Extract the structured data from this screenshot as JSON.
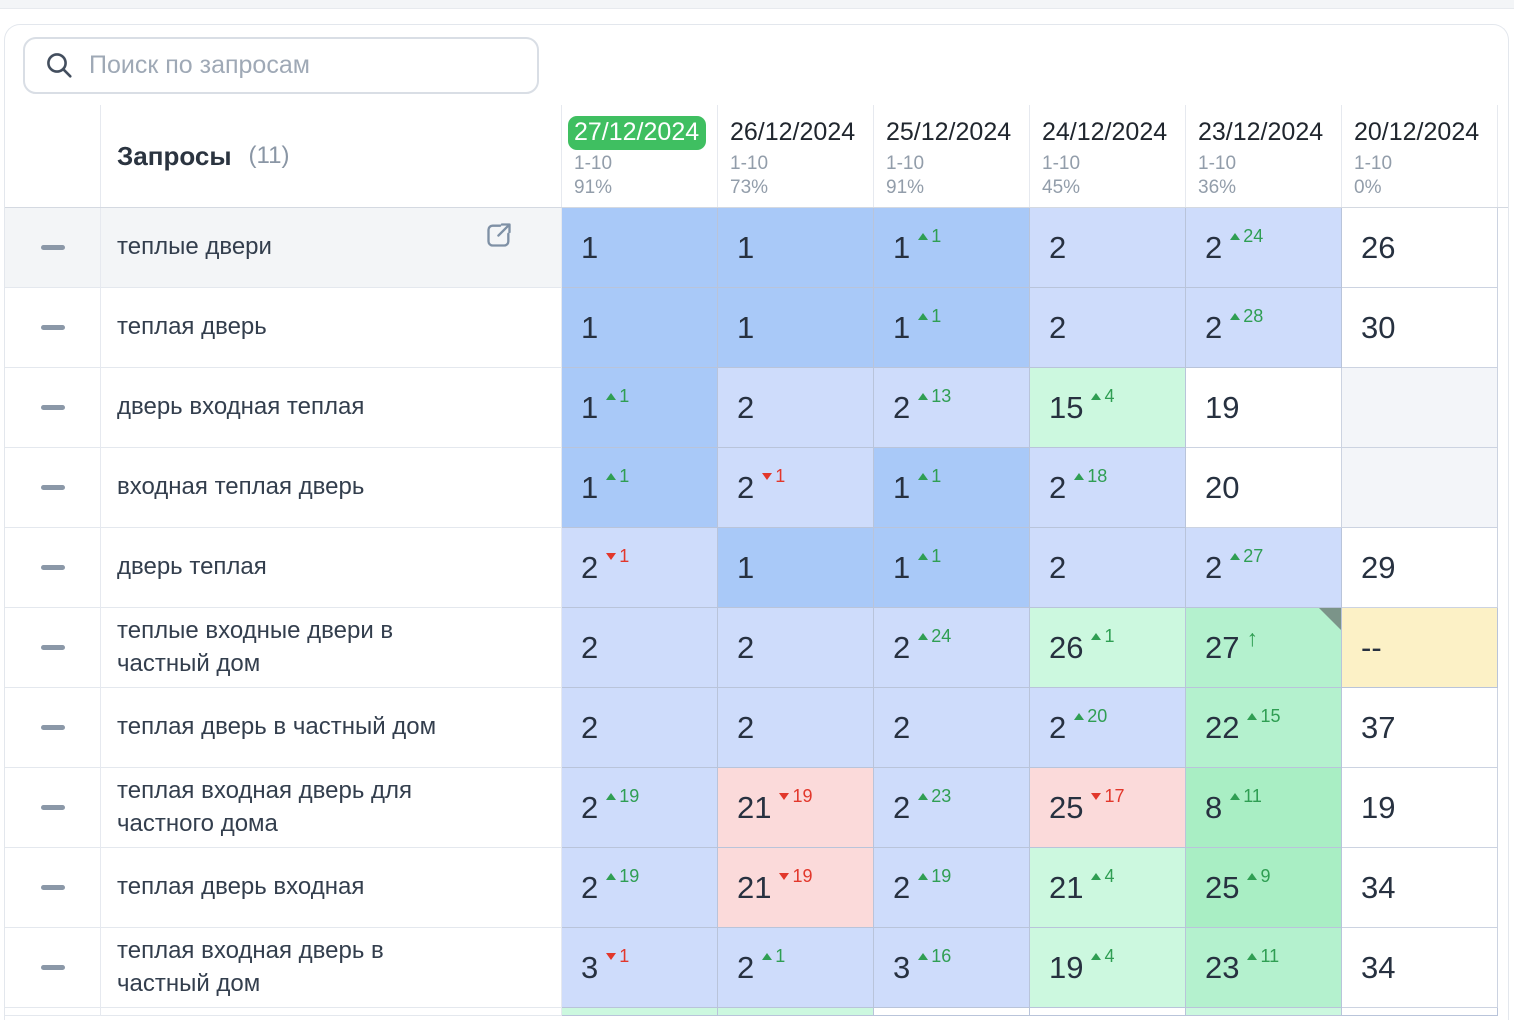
{
  "search": {
    "placeholder": "Поиск по запросам"
  },
  "icons": {
    "search": "magnifier",
    "row_select": "minus-dash",
    "row_action": "external-link",
    "change_up": "triangle-up",
    "change_down": "triangle-down",
    "new_entry": "arrow-up",
    "cell_note": "corner-notch"
  },
  "colors": {
    "b1": "#a9c9f8",
    "b2": "#cedcfb",
    "g1": "#ccf8df",
    "g2": "#b4f1ce",
    "g3": "#a9eec4",
    "pink": "#fbdada",
    "yellow": "#fcf1c6",
    "empty": "#f3f5f9",
    "white": "#ffffff",
    "selected_date_badge": "#3fbf61",
    "up": "#2f9e53",
    "down": "#e2372b"
  },
  "table": {
    "queries_label": "Запросы",
    "queries_count": "(11)",
    "columns": [
      {
        "date": "27/12/2024",
        "range": "1-10",
        "percent": "91%",
        "selected": true
      },
      {
        "date": "26/12/2024",
        "range": "1-10",
        "percent": "73%",
        "selected": false
      },
      {
        "date": "25/12/2024",
        "range": "1-10",
        "percent": "91%",
        "selected": false
      },
      {
        "date": "24/12/2024",
        "range": "1-10",
        "percent": "45%",
        "selected": false
      },
      {
        "date": "23/12/2024",
        "range": "1-10",
        "percent": "36%",
        "selected": false
      },
      {
        "date": "20/12/2024",
        "range": "1-10",
        "percent": "0%",
        "selected": false
      }
    ],
    "rows": [
      {
        "query": "теплые двери",
        "hovered": true,
        "cells": [
          {
            "v": "1",
            "bg": "b1"
          },
          {
            "v": "1",
            "bg": "b1"
          },
          {
            "v": "1",
            "dir": "up",
            "chg": "1",
            "bg": "b1"
          },
          {
            "v": "2",
            "bg": "b2"
          },
          {
            "v": "2",
            "dir": "up",
            "chg": "24",
            "bg": "b2"
          },
          {
            "v": "26",
            "bg": "white"
          }
        ]
      },
      {
        "query": "теплая дверь",
        "cells": [
          {
            "v": "1",
            "bg": "b1"
          },
          {
            "v": "1",
            "bg": "b1"
          },
          {
            "v": "1",
            "dir": "up",
            "chg": "1",
            "bg": "b1"
          },
          {
            "v": "2",
            "bg": "b2"
          },
          {
            "v": "2",
            "dir": "up",
            "chg": "28",
            "bg": "b2"
          },
          {
            "v": "30",
            "bg": "white"
          }
        ]
      },
      {
        "query": "дверь входная теплая",
        "cells": [
          {
            "v": "1",
            "dir": "up",
            "chg": "1",
            "bg": "b1"
          },
          {
            "v": "2",
            "bg": "b2"
          },
          {
            "v": "2",
            "dir": "up",
            "chg": "13",
            "bg": "b2"
          },
          {
            "v": "15",
            "dir": "up",
            "chg": "4",
            "bg": "g1"
          },
          {
            "v": "19",
            "bg": "white"
          },
          {
            "v": "",
            "bg": "empty"
          }
        ]
      },
      {
        "query": "входная теплая дверь",
        "cells": [
          {
            "v": "1",
            "dir": "up",
            "chg": "1",
            "bg": "b1"
          },
          {
            "v": "2",
            "dir": "down",
            "chg": "1",
            "bg": "b2"
          },
          {
            "v": "1",
            "dir": "up",
            "chg": "1",
            "bg": "b1"
          },
          {
            "v": "2",
            "dir": "up",
            "chg": "18",
            "bg": "b2"
          },
          {
            "v": "20",
            "bg": "white"
          },
          {
            "v": "",
            "bg": "empty"
          }
        ]
      },
      {
        "query": "дверь теплая",
        "cells": [
          {
            "v": "2",
            "dir": "down",
            "chg": "1",
            "bg": "b2"
          },
          {
            "v": "1",
            "bg": "b1"
          },
          {
            "v": "1",
            "dir": "up",
            "chg": "1",
            "bg": "b1"
          },
          {
            "v": "2",
            "bg": "b2"
          },
          {
            "v": "2",
            "dir": "up",
            "chg": "27",
            "bg": "b2"
          },
          {
            "v": "29",
            "bg": "white"
          }
        ]
      },
      {
        "query": "теплые входные двери в частный дом",
        "cells": [
          {
            "v": "2",
            "bg": "b2"
          },
          {
            "v": "2",
            "bg": "b2"
          },
          {
            "v": "2",
            "dir": "up",
            "chg": "24",
            "bg": "b2"
          },
          {
            "v": "26",
            "dir": "up",
            "chg": "1",
            "bg": "g1"
          },
          {
            "v": "27",
            "dir": "new",
            "bg": "g2",
            "corner": true
          },
          {
            "v": "--",
            "bg": "yellow"
          }
        ]
      },
      {
        "query": "теплая дверь в частный дом",
        "cells": [
          {
            "v": "2",
            "bg": "b2"
          },
          {
            "v": "2",
            "bg": "b2"
          },
          {
            "v": "2",
            "bg": "b2"
          },
          {
            "v": "2",
            "dir": "up",
            "chg": "20",
            "bg": "b2"
          },
          {
            "v": "22",
            "dir": "up",
            "chg": "15",
            "bg": "g2"
          },
          {
            "v": "37",
            "bg": "white"
          }
        ]
      },
      {
        "query": "теплая входная дверь для частного дома",
        "cells": [
          {
            "v": "2",
            "dir": "up",
            "chg": "19",
            "bg": "b2"
          },
          {
            "v": "21",
            "dir": "down",
            "chg": "19",
            "bg": "pink"
          },
          {
            "v": "2",
            "dir": "up",
            "chg": "23",
            "bg": "b2"
          },
          {
            "v": "25",
            "dir": "down",
            "chg": "17",
            "bg": "pink"
          },
          {
            "v": "8",
            "dir": "up",
            "chg": "11",
            "bg": "g3"
          },
          {
            "v": "19",
            "bg": "white"
          }
        ]
      },
      {
        "query": "теплая дверь входная",
        "cells": [
          {
            "v": "2",
            "dir": "up",
            "chg": "19",
            "bg": "b2"
          },
          {
            "v": "21",
            "dir": "down",
            "chg": "19",
            "bg": "pink"
          },
          {
            "v": "2",
            "dir": "up",
            "chg": "19",
            "bg": "b2"
          },
          {
            "v": "21",
            "dir": "up",
            "chg": "4",
            "bg": "g1"
          },
          {
            "v": "25",
            "dir": "up",
            "chg": "9",
            "bg": "g3"
          },
          {
            "v": "34",
            "bg": "white"
          }
        ]
      },
      {
        "query": "теплая входная дверь в частный дом",
        "cells": [
          {
            "v": "3",
            "dir": "down",
            "chg": "1",
            "bg": "b2"
          },
          {
            "v": "2",
            "dir": "up",
            "chg": "1",
            "bg": "b2"
          },
          {
            "v": "3",
            "dir": "up",
            "chg": "16",
            "bg": "b2"
          },
          {
            "v": "19",
            "dir": "up",
            "chg": "4",
            "bg": "g1"
          },
          {
            "v": "23",
            "dir": "up",
            "chg": "11",
            "bg": "g2"
          },
          {
            "v": "34",
            "bg": "white"
          }
        ]
      }
    ],
    "partial_row_bgs": [
      "g1",
      "g1",
      "white",
      "white",
      "g1",
      "white"
    ]
  }
}
